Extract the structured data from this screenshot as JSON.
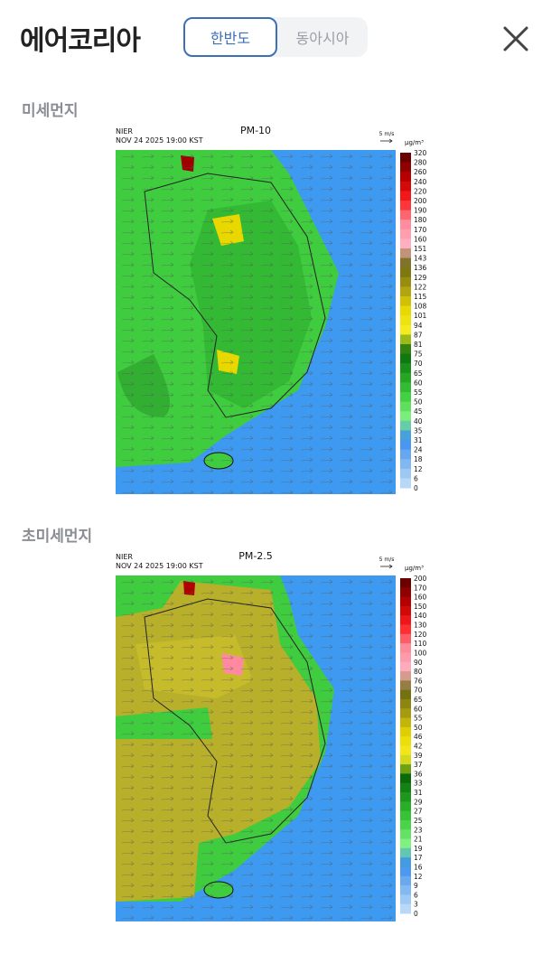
{
  "header": {
    "title": "에어코리아",
    "tabs": [
      {
        "label": "한반도",
        "selected": true
      },
      {
        "label": "동아시아",
        "selected": false
      }
    ]
  },
  "sections": [
    {
      "heading": "미세먼지",
      "map": {
        "agency": "NIER",
        "timestamp": "NOV 24 2025 19:00 KST",
        "title": "PM-10",
        "wind_scale": "5 m/s",
        "unit": "μg/m³",
        "colorbar_labels": [
          320,
          280,
          260,
          240,
          220,
          200,
          190,
          180,
          170,
          160,
          151,
          143,
          136,
          129,
          122,
          115,
          108,
          101,
          94,
          87,
          81,
          75,
          70,
          65,
          60,
          55,
          50,
          45,
          40,
          35,
          31,
          24,
          18,
          12,
          6,
          0
        ],
        "colorbar_colors": [
          "#6a0000",
          "#c00000",
          "#ff2020",
          "#ff8a9a",
          "#ffb0c0",
          "#6b6a10",
          "#a89a10",
          "#e8d800",
          "#f4ec20",
          "#0a6a0a",
          "#20a020",
          "#40d040",
          "#80f080",
          "#3a8ef0",
          "#7ab4f0",
          "#b8d8f8"
        ]
      }
    },
    {
      "heading": "초미세먼지",
      "map": {
        "agency": "NIER",
        "timestamp": "NOV 24 2025 19:00 KST",
        "title": "PM-2.5",
        "wind_scale": "5 m/s",
        "unit": "μg/m³",
        "colorbar_labels": [
          200,
          170,
          160,
          150,
          140,
          130,
          120,
          110,
          100,
          90,
          80,
          76,
          70,
          65,
          60,
          55,
          50,
          46,
          42,
          39,
          37,
          36,
          33,
          31,
          29,
          27,
          25,
          23,
          21,
          19,
          17,
          16,
          12,
          9,
          6,
          3,
          0
        ],
        "colorbar_colors": [
          "#6a0000",
          "#c00000",
          "#ff2020",
          "#ff8a9a",
          "#ffb0c0",
          "#6b6a10",
          "#a89a10",
          "#e8d800",
          "#f4ec20",
          "#0a6a0a",
          "#20a020",
          "#40d040",
          "#80f080",
          "#3a8ef0",
          "#7ab4f0",
          "#b8d8f8"
        ]
      }
    }
  ]
}
